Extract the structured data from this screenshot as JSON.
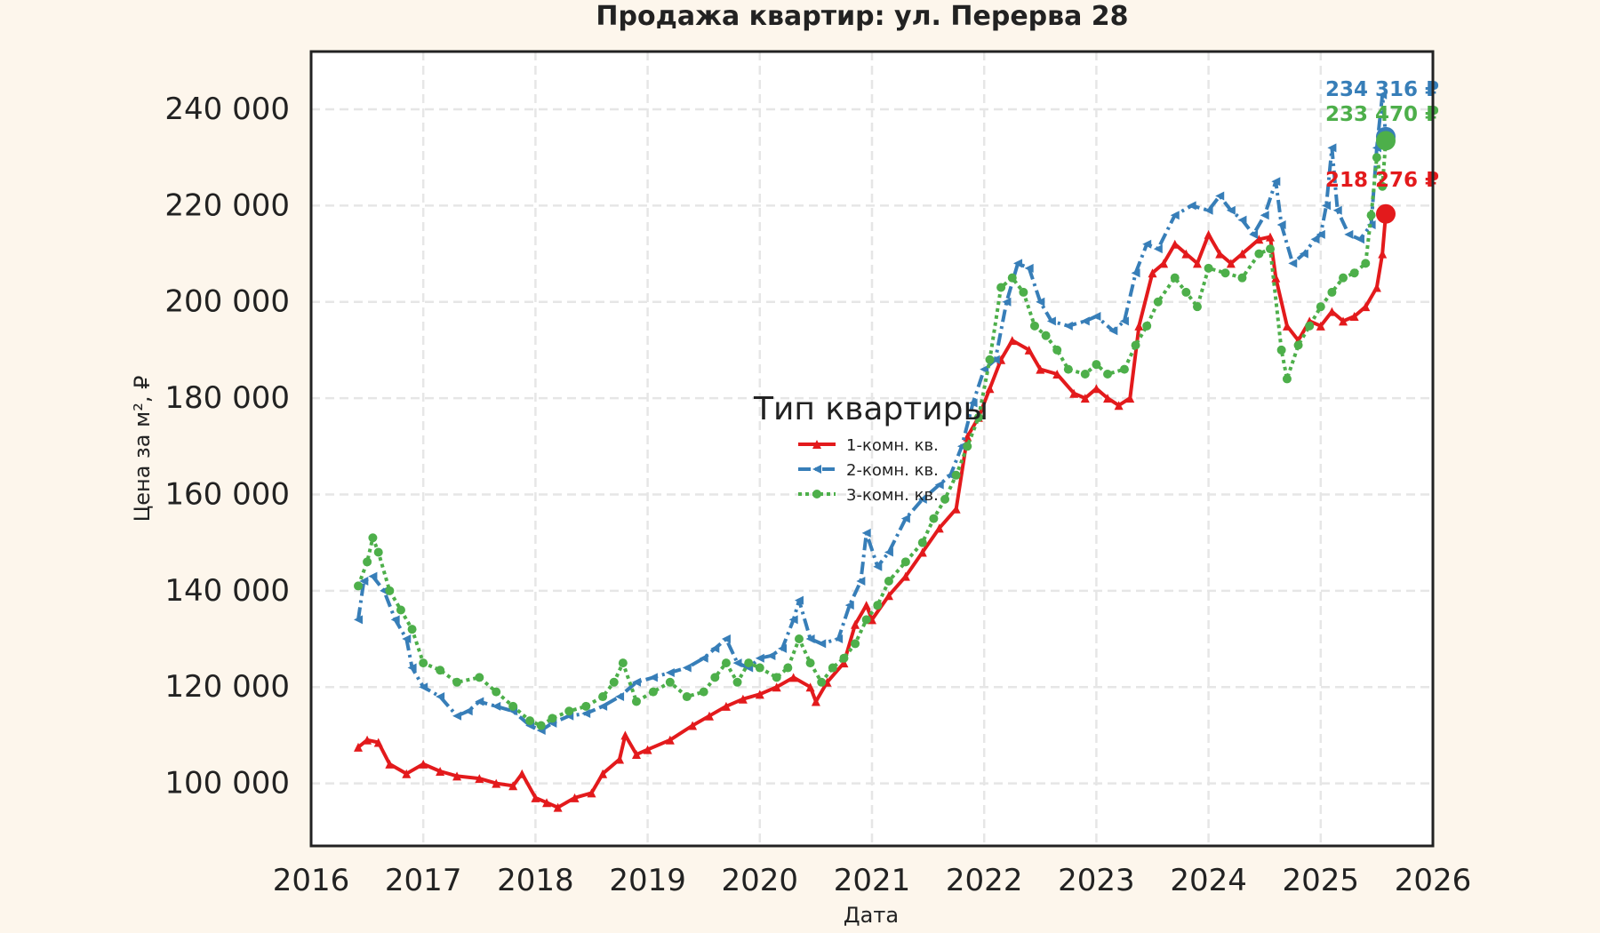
{
  "chart_data": {
    "type": "line",
    "title": "Продажа квартир: ул. Перерва 28",
    "xlabel": "Дата",
    "ylabel": "Цена за м², ₽",
    "xlim": [
      2016.0,
      2026.0
    ],
    "ylim": [
      87000,
      252000
    ],
    "x_ticks": [
      2016,
      2017,
      2018,
      2019,
      2020,
      2021,
      2022,
      2023,
      2024,
      2025,
      2026
    ],
    "x_tick_labels": [
      "2016",
      "2017",
      "2018",
      "2019",
      "2020",
      "2021",
      "2022",
      "2023",
      "2024",
      "2025",
      "2026"
    ],
    "y_ticks": [
      100000,
      120000,
      140000,
      160000,
      180000,
      200000,
      220000,
      240000
    ],
    "y_tick_labels": [
      "100 000",
      "120 000",
      "140 000",
      "160 000",
      "180 000",
      "200 000",
      "220 000",
      "240 000"
    ],
    "grid": true,
    "legend": {
      "title": "Тип квартиры",
      "position": "center"
    },
    "series": [
      {
        "name": "1-комн. кв.",
        "color": "#e31a1c",
        "line_style": "solid",
        "marker": "triangle",
        "points": [
          [
            2016.42,
            107500
          ],
          [
            2016.5,
            109000
          ],
          [
            2016.6,
            108500
          ],
          [
            2016.7,
            104000
          ],
          [
            2016.85,
            102000
          ],
          [
            2017.0,
            104000
          ],
          [
            2017.15,
            102500
          ],
          [
            2017.3,
            101500
          ],
          [
            2017.5,
            101000
          ],
          [
            2017.65,
            100000
          ],
          [
            2017.8,
            99500
          ],
          [
            2017.88,
            102000
          ],
          [
            2018.0,
            97000
          ],
          [
            2018.1,
            96000
          ],
          [
            2018.2,
            95000
          ],
          [
            2018.35,
            97000
          ],
          [
            2018.5,
            98000
          ],
          [
            2018.6,
            102000
          ],
          [
            2018.75,
            105000
          ],
          [
            2018.8,
            110000
          ],
          [
            2018.9,
            106000
          ],
          [
            2019.0,
            107000
          ],
          [
            2019.2,
            109000
          ],
          [
            2019.4,
            112000
          ],
          [
            2019.55,
            114000
          ],
          [
            2019.7,
            116000
          ],
          [
            2019.85,
            117500
          ],
          [
            2020.0,
            118500
          ],
          [
            2020.15,
            120000
          ],
          [
            2020.3,
            122000
          ],
          [
            2020.45,
            120000
          ],
          [
            2020.5,
            117000
          ],
          [
            2020.6,
            121000
          ],
          [
            2020.75,
            125000
          ],
          [
            2020.85,
            133000
          ],
          [
            2020.95,
            137000
          ],
          [
            2021.0,
            134000
          ],
          [
            2021.15,
            139000
          ],
          [
            2021.3,
            143000
          ],
          [
            2021.45,
            148000
          ],
          [
            2021.6,
            153000
          ],
          [
            2021.75,
            157000
          ],
          [
            2021.85,
            172000
          ],
          [
            2021.95,
            176000
          ],
          [
            2022.05,
            182000
          ],
          [
            2022.15,
            188000
          ],
          [
            2022.25,
            192000
          ],
          [
            2022.4,
            190000
          ],
          [
            2022.5,
            186000
          ],
          [
            2022.65,
            185000
          ],
          [
            2022.8,
            181000
          ],
          [
            2022.9,
            180000
          ],
          [
            2023.0,
            182000
          ],
          [
            2023.1,
            180000
          ],
          [
            2023.2,
            178500
          ],
          [
            2023.3,
            180000
          ],
          [
            2023.38,
            195000
          ],
          [
            2023.5,
            206000
          ],
          [
            2023.6,
            208000
          ],
          [
            2023.7,
            212000
          ],
          [
            2023.8,
            210000
          ],
          [
            2023.9,
            208000
          ],
          [
            2024.0,
            214000
          ],
          [
            2024.1,
            210000
          ],
          [
            2024.2,
            208000
          ],
          [
            2024.3,
            210000
          ],
          [
            2024.45,
            213000
          ],
          [
            2024.55,
            213500
          ],
          [
            2024.6,
            205000
          ],
          [
            2024.7,
            195000
          ],
          [
            2024.8,
            192000
          ],
          [
            2024.9,
            196000
          ],
          [
            2025.0,
            195000
          ],
          [
            2025.1,
            198000
          ],
          [
            2025.2,
            196000
          ],
          [
            2025.3,
            197000
          ],
          [
            2025.4,
            199000
          ],
          [
            2025.5,
            203000
          ],
          [
            2025.55,
            210000
          ],
          [
            2025.58,
            218276
          ]
        ],
        "end_label": "218 276 ₽"
      },
      {
        "name": "2-комн. кв.",
        "color": "#377eb8",
        "line_style": "dashdot",
        "marker": "tri_left",
        "points": [
          [
            2016.42,
            134000
          ],
          [
            2016.47,
            142000
          ],
          [
            2016.55,
            143000
          ],
          [
            2016.65,
            140000
          ],
          [
            2016.75,
            134000
          ],
          [
            2016.85,
            130000
          ],
          [
            2016.9,
            124000
          ],
          [
            2017.0,
            120000
          ],
          [
            2017.15,
            118000
          ],
          [
            2017.3,
            114000
          ],
          [
            2017.4,
            115000
          ],
          [
            2017.5,
            117000
          ],
          [
            2017.65,
            116000
          ],
          [
            2017.8,
            115000
          ],
          [
            2017.95,
            112000
          ],
          [
            2018.05,
            111000
          ],
          [
            2018.15,
            112500
          ],
          [
            2018.3,
            114000
          ],
          [
            2018.45,
            114500
          ],
          [
            2018.6,
            116000
          ],
          [
            2018.75,
            118000
          ],
          [
            2018.9,
            121000
          ],
          [
            2019.05,
            122000
          ],
          [
            2019.2,
            123000
          ],
          [
            2019.35,
            124000
          ],
          [
            2019.5,
            126000
          ],
          [
            2019.6,
            128000
          ],
          [
            2019.7,
            130000
          ],
          [
            2019.8,
            125000
          ],
          [
            2019.9,
            124000
          ],
          [
            2020.0,
            126000
          ],
          [
            2020.1,
            126500
          ],
          [
            2020.2,
            128000
          ],
          [
            2020.3,
            134000
          ],
          [
            2020.35,
            138000
          ],
          [
            2020.45,
            130000
          ],
          [
            2020.55,
            129000
          ],
          [
            2020.7,
            130000
          ],
          [
            2020.8,
            137000
          ],
          [
            2020.9,
            142000
          ],
          [
            2020.95,
            152000
          ],
          [
            2021.05,
            145000
          ],
          [
            2021.15,
            148000
          ],
          [
            2021.3,
            155000
          ],
          [
            2021.45,
            159000
          ],
          [
            2021.6,
            162000
          ],
          [
            2021.7,
            164000
          ],
          [
            2021.8,
            170000
          ],
          [
            2021.9,
            179000
          ],
          [
            2022.0,
            186000
          ],
          [
            2022.1,
            188000
          ],
          [
            2022.2,
            200000
          ],
          [
            2022.3,
            208000
          ],
          [
            2022.4,
            207000
          ],
          [
            2022.5,
            200000
          ],
          [
            2022.6,
            196000
          ],
          [
            2022.75,
            195000
          ],
          [
            2022.9,
            196000
          ],
          [
            2023.0,
            197000
          ],
          [
            2023.15,
            194000
          ],
          [
            2023.25,
            196000
          ],
          [
            2023.35,
            206000
          ],
          [
            2023.45,
            212000
          ],
          [
            2023.55,
            211000
          ],
          [
            2023.7,
            218000
          ],
          [
            2023.85,
            220000
          ],
          [
            2024.0,
            219000
          ],
          [
            2024.1,
            222000
          ],
          [
            2024.2,
            219000
          ],
          [
            2024.3,
            217000
          ],
          [
            2024.4,
            214000
          ],
          [
            2024.5,
            218000
          ],
          [
            2024.6,
            225000
          ],
          [
            2024.65,
            216000
          ],
          [
            2024.75,
            208000
          ],
          [
            2024.85,
            210000
          ],
          [
            2024.95,
            213000
          ],
          [
            2025.0,
            214000
          ],
          [
            2025.05,
            220000
          ],
          [
            2025.1,
            232000
          ],
          [
            2025.15,
            219000
          ],
          [
            2025.25,
            214000
          ],
          [
            2025.35,
            213000
          ],
          [
            2025.45,
            216000
          ],
          [
            2025.5,
            232000
          ],
          [
            2025.55,
            243000
          ],
          [
            2025.58,
            234316
          ]
        ],
        "end_label": "234 316 ₽"
      },
      {
        "name": "3-комн. кв.",
        "color": "#4daf4a",
        "line_style": "dotted",
        "marker": "pentagon",
        "points": [
          [
            2016.42,
            141000
          ],
          [
            2016.5,
            146000
          ],
          [
            2016.55,
            151000
          ],
          [
            2016.6,
            148000
          ],
          [
            2016.7,
            140000
          ],
          [
            2016.8,
            136000
          ],
          [
            2016.9,
            132000
          ],
          [
            2017.0,
            125000
          ],
          [
            2017.15,
            123500
          ],
          [
            2017.3,
            121000
          ],
          [
            2017.5,
            122000
          ],
          [
            2017.65,
            119000
          ],
          [
            2017.8,
            116000
          ],
          [
            2017.95,
            113000
          ],
          [
            2018.05,
            112000
          ],
          [
            2018.15,
            113500
          ],
          [
            2018.3,
            115000
          ],
          [
            2018.45,
            116000
          ],
          [
            2018.6,
            118000
          ],
          [
            2018.7,
            121000
          ],
          [
            2018.78,
            125000
          ],
          [
            2018.9,
            117000
          ],
          [
            2019.05,
            119000
          ],
          [
            2019.2,
            121000
          ],
          [
            2019.35,
            118000
          ],
          [
            2019.5,
            119000
          ],
          [
            2019.6,
            122000
          ],
          [
            2019.7,
            125000
          ],
          [
            2019.8,
            121000
          ],
          [
            2019.9,
            125000
          ],
          [
            2020.0,
            124000
          ],
          [
            2020.15,
            122000
          ],
          [
            2020.25,
            124000
          ],
          [
            2020.35,
            130000
          ],
          [
            2020.45,
            125000
          ],
          [
            2020.55,
            121000
          ],
          [
            2020.65,
            124000
          ],
          [
            2020.75,
            126000
          ],
          [
            2020.85,
            129000
          ],
          [
            2020.95,
            134000
          ],
          [
            2021.05,
            137000
          ],
          [
            2021.15,
            142000
          ],
          [
            2021.3,
            146000
          ],
          [
            2021.45,
            150000
          ],
          [
            2021.55,
            155000
          ],
          [
            2021.65,
            159000
          ],
          [
            2021.75,
            164000
          ],
          [
            2021.85,
            170000
          ],
          [
            2021.95,
            176000
          ],
          [
            2022.05,
            188000
          ],
          [
            2022.15,
            203000
          ],
          [
            2022.25,
            205000
          ],
          [
            2022.35,
            202000
          ],
          [
            2022.45,
            195000
          ],
          [
            2022.55,
            193000
          ],
          [
            2022.65,
            190000
          ],
          [
            2022.75,
            186000
          ],
          [
            2022.9,
            185000
          ],
          [
            2023.0,
            187000
          ],
          [
            2023.1,
            185000
          ],
          [
            2023.25,
            186000
          ],
          [
            2023.35,
            191000
          ],
          [
            2023.45,
            195000
          ],
          [
            2023.55,
            200000
          ],
          [
            2023.7,
            205000
          ],
          [
            2023.8,
            202000
          ],
          [
            2023.9,
            199000
          ],
          [
            2024.0,
            207000
          ],
          [
            2024.15,
            206000
          ],
          [
            2024.3,
            205000
          ],
          [
            2024.45,
            210000
          ],
          [
            2024.55,
            211000
          ],
          [
            2024.65,
            190000
          ],
          [
            2024.7,
            184000
          ],
          [
            2024.8,
            191000
          ],
          [
            2024.9,
            195000
          ],
          [
            2025.0,
            199000
          ],
          [
            2025.1,
            202000
          ],
          [
            2025.2,
            205000
          ],
          [
            2025.3,
            206000
          ],
          [
            2025.4,
            208000
          ],
          [
            2025.45,
            218000
          ],
          [
            2025.5,
            230000
          ],
          [
            2025.55,
            224000
          ],
          [
            2025.58,
            233470
          ]
        ],
        "end_label": "233 470 ₽"
      }
    ]
  }
}
